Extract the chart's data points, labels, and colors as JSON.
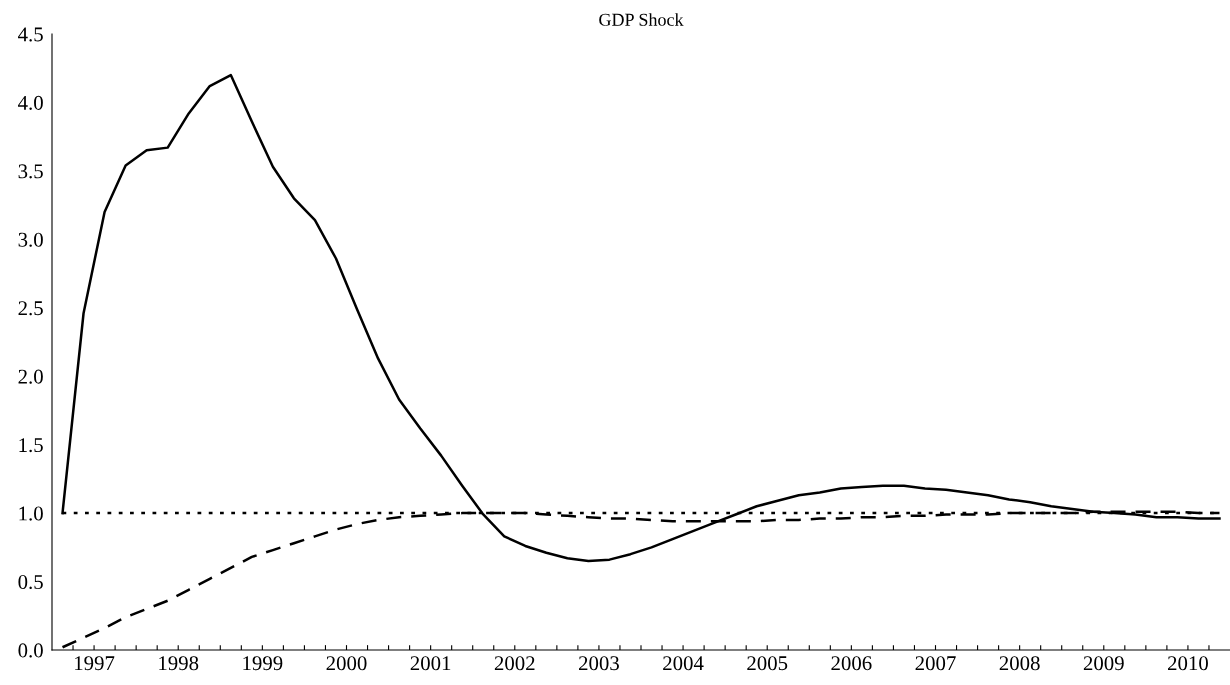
{
  "chart_data": {
    "type": "line",
    "title": "GDP Shock",
    "x": [
      1997.125,
      1997.375,
      1997.625,
      1997.875,
      1998.125,
      1998.375,
      1998.625,
      1998.875,
      1999.125,
      1999.375,
      1999.625,
      1999.875,
      2000.125,
      2000.375,
      2000.625,
      2000.875,
      2001.125,
      2001.375,
      2001.625,
      2001.875,
      2002.125,
      2002.375,
      2002.625,
      2002.875,
      2003.125,
      2003.375,
      2003.625,
      2003.875,
      2004.125,
      2004.375,
      2004.625,
      2004.875,
      2005.125,
      2005.375,
      2005.625,
      2005.875,
      2006.125,
      2006.375,
      2006.625,
      2006.875,
      2007.125,
      2007.375,
      2007.625,
      2007.875,
      2008.125,
      2008.375,
      2008.625,
      2008.875,
      2009.125,
      2009.375,
      2009.625,
      2009.875,
      2010.125,
      2010.375,
      2010.625,
      2010.875
    ],
    "series": [
      {
        "color": "#000000",
        "line_style": "solid",
        "values": [
          1.0,
          2.46,
          3.2,
          3.54,
          3.65,
          3.67,
          3.92,
          4.12,
          4.2,
          3.86,
          3.53,
          3.3,
          3.14,
          2.86,
          2.49,
          2.13,
          1.83,
          1.62,
          1.42,
          1.2,
          0.99,
          0.83,
          0.76,
          0.71,
          0.67,
          0.65,
          0.66,
          0.7,
          0.75,
          0.81,
          0.87,
          0.93,
          0.99,
          1.05,
          1.09,
          1.13,
          1.15,
          1.18,
          1.19,
          1.2,
          1.2,
          1.18,
          1.17,
          1.15,
          1.13,
          1.1,
          1.08,
          1.05,
          1.03,
          1.01,
          1.0,
          0.99,
          0.97,
          0.97,
          0.96,
          0.96
        ]
      },
      {
        "color": "#000000",
        "line_style": "dashed",
        "values": [
          0.02,
          0.09,
          0.16,
          0.24,
          0.3,
          0.36,
          0.44,
          0.52,
          0.6,
          0.68,
          0.73,
          0.78,
          0.83,
          0.88,
          0.92,
          0.95,
          0.97,
          0.98,
          0.99,
          1.0,
          1.0,
          1.0,
          1.0,
          0.99,
          0.98,
          0.97,
          0.96,
          0.96,
          0.95,
          0.94,
          0.94,
          0.94,
          0.94,
          0.94,
          0.95,
          0.95,
          0.96,
          0.96,
          0.97,
          0.97,
          0.98,
          0.98,
          0.99,
          0.99,
          0.99,
          1.0,
          1.0,
          1.0,
          1.0,
          1.01,
          1.01,
          1.01,
          1.01,
          1.01,
          1.0,
          1.0
        ]
      },
      {
        "color": "#000000",
        "line_style": "dotted",
        "values": [
          1.0,
          1.0,
          1.0,
          1.0,
          1.0,
          1.0,
          1.0,
          1.0,
          1.0,
          1.0,
          1.0,
          1.0,
          1.0,
          1.0,
          1.0,
          1.0,
          1.0,
          1.0,
          1.0,
          1.0,
          1.0,
          1.0,
          1.0,
          1.0,
          1.0,
          1.0,
          1.0,
          1.0,
          1.0,
          1.0,
          1.0,
          1.0,
          1.0,
          1.0,
          1.0,
          1.0,
          1.0,
          1.0,
          1.0,
          1.0,
          1.0,
          1.0,
          1.0,
          1.0,
          1.0,
          1.0,
          1.0,
          1.0,
          1.0,
          1.0,
          1.0,
          1.0,
          1.0,
          1.0,
          1.0,
          1.0
        ]
      }
    ],
    "xlim": [
      1997,
      2011
    ],
    "xticks": [
      {
        "value": 1997.25,
        "label": null
      },
      {
        "value": 1997.5,
        "label": "1997"
      },
      {
        "value": 1997.75,
        "label": null
      },
      {
        "value": 1998,
        "label": null
      },
      {
        "value": 1998.25,
        "label": null
      },
      {
        "value": 1998.5,
        "label": "1998"
      },
      {
        "value": 1998.75,
        "label": null
      },
      {
        "value": 1999,
        "label": null
      },
      {
        "value": 1999.25,
        "label": null
      },
      {
        "value": 1999.5,
        "label": "1999"
      },
      {
        "value": 1999.75,
        "label": null
      },
      {
        "value": 2000,
        "label": null
      },
      {
        "value": 2000.25,
        "label": null
      },
      {
        "value": 2000.5,
        "label": "2000"
      },
      {
        "value": 2000.75,
        "label": null
      },
      {
        "value": 2001,
        "label": null
      },
      {
        "value": 2001.25,
        "label": null
      },
      {
        "value": 2001.5,
        "label": "2001"
      },
      {
        "value": 2001.75,
        "label": null
      },
      {
        "value": 2002,
        "label": null
      },
      {
        "value": 2002.25,
        "label": null
      },
      {
        "value": 2002.5,
        "label": "2002"
      },
      {
        "value": 2002.75,
        "label": null
      },
      {
        "value": 2003,
        "label": null
      },
      {
        "value": 2003.25,
        "label": null
      },
      {
        "value": 2003.5,
        "label": "2003"
      },
      {
        "value": 2003.75,
        "label": null
      },
      {
        "value": 2004,
        "label": null
      },
      {
        "value": 2004.25,
        "label": null
      },
      {
        "value": 2004.5,
        "label": "2004"
      },
      {
        "value": 2004.75,
        "label": null
      },
      {
        "value": 2005,
        "label": null
      },
      {
        "value": 2005.25,
        "label": null
      },
      {
        "value": 2005.5,
        "label": "2005"
      },
      {
        "value": 2005.75,
        "label": null
      },
      {
        "value": 2006,
        "label": null
      },
      {
        "value": 2006.25,
        "label": null
      },
      {
        "value": 2006.5,
        "label": "2006"
      },
      {
        "value": 2006.75,
        "label": null
      },
      {
        "value": 2007,
        "label": null
      },
      {
        "value": 2007.25,
        "label": null
      },
      {
        "value": 2007.5,
        "label": "2007"
      },
      {
        "value": 2007.75,
        "label": null
      },
      {
        "value": 2008,
        "label": null
      },
      {
        "value": 2008.25,
        "label": null
      },
      {
        "value": 2008.5,
        "label": "2008"
      },
      {
        "value": 2008.75,
        "label": null
      },
      {
        "value": 2009,
        "label": null
      },
      {
        "value": 2009.25,
        "label": null
      },
      {
        "value": 2009.5,
        "label": "2009"
      },
      {
        "value": 2009.75,
        "label": null
      },
      {
        "value": 2010,
        "label": null
      },
      {
        "value": 2010.25,
        "label": null
      },
      {
        "value": 2010.5,
        "label": "2010"
      },
      {
        "value": 2010.75,
        "label": null
      }
    ],
    "ylim": [
      0,
      4.5
    ],
    "yticks": [
      {
        "value": 0,
        "label": "0.0"
      },
      {
        "value": 0.5,
        "label": "0.5"
      },
      {
        "value": 1,
        "label": "1.0"
      },
      {
        "value": 1.5,
        "label": "1.5"
      },
      {
        "value": 2,
        "label": "2.0"
      },
      {
        "value": 2.5,
        "label": "2.5"
      },
      {
        "value": 3,
        "label": "3.0"
      },
      {
        "value": 3.5,
        "label": "3.5"
      },
      {
        "value": 4,
        "label": "4.0"
      },
      {
        "value": 4.5,
        "label": "4.5"
      }
    ],
    "grid": false
  }
}
